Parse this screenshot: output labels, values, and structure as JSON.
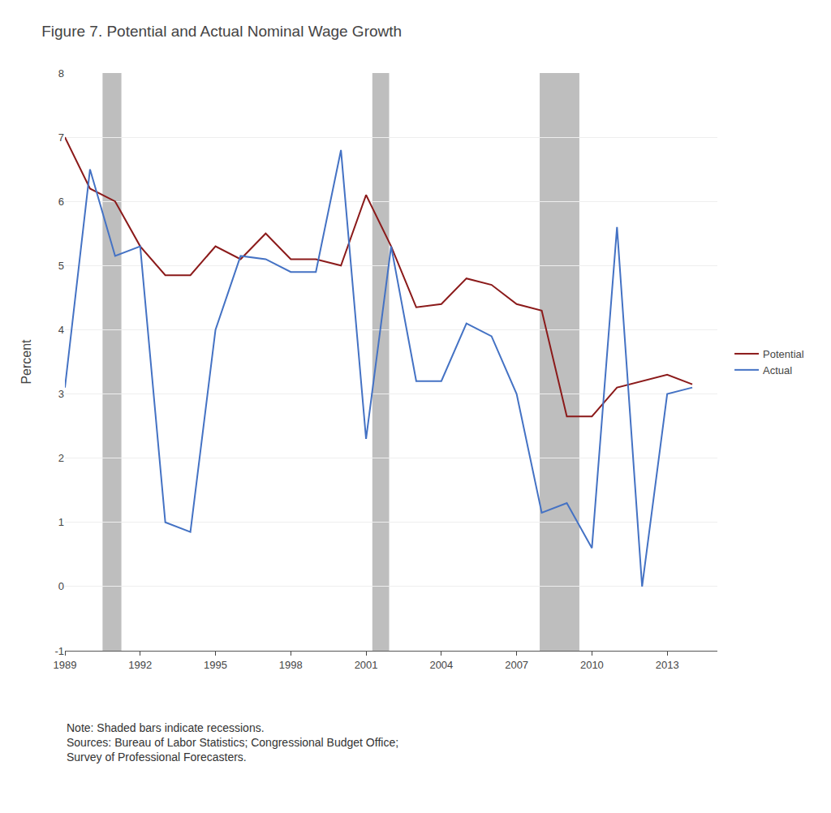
{
  "chart_data": {
    "type": "line",
    "title": "Figure 7. Potential and Actual Nominal Wage Growth",
    "y_label": "Percent",
    "annotations": [
      "Note: Shaded bars indicate recessions.\nSources: Bureau of Labor Statistics; Congressional Budget Office;\nSurvey of Professional Forecasters."
    ],
    "x": [
      1989,
      1990,
      1991,
      1992,
      1993,
      1994,
      1995,
      1996,
      1997,
      1998,
      1999,
      2000,
      2001,
      2002,
      2003,
      2004,
      2005,
      2006,
      2007,
      2008,
      2009,
      2010,
      2011,
      2012,
      2013,
      2014
    ],
    "series": [
      {
        "name": "Potential",
        "color": "#8B1A1A",
        "values": [
          7.0,
          6.2,
          6.0,
          5.3,
          4.85,
          4.85,
          5.3,
          5.1,
          5.5,
          5.1,
          5.1,
          5.0,
          6.1,
          5.3,
          4.35,
          4.4,
          4.8,
          4.7,
          4.4,
          4.3,
          2.65,
          2.65,
          3.1,
          3.2,
          3.3,
          3.15
        ]
      },
      {
        "name": "Actual",
        "color": "#4472C4",
        "values": [
          3.1,
          6.5,
          5.15,
          5.3,
          1.0,
          0.85,
          4.0,
          5.15,
          5.1,
          4.9,
          4.9,
          6.8,
          2.3,
          5.3,
          3.2,
          3.2,
          4.1,
          3.9,
          3.0,
          1.15,
          1.3,
          0.6,
          5.6,
          0.0,
          3.0,
          3.1
        ]
      }
    ],
    "recession_bands": [
      [
        1990.5,
        1991.25
      ],
      [
        2001.25,
        2001.92
      ],
      [
        2007.92,
        2009.5
      ]
    ],
    "recession_color": "#BEBEBE",
    "xlim": [
      1989,
      2015.0
    ],
    "xticks": [
      1989,
      1992,
      1995,
      1998,
      2001,
      2004,
      2007,
      2010,
      2013
    ],
    "ylim": [
      -1,
      8
    ],
    "yticks": [
      -1,
      0,
      1,
      2,
      3,
      4,
      5,
      6,
      7,
      8
    ],
    "grid": true,
    "legend": "right"
  }
}
